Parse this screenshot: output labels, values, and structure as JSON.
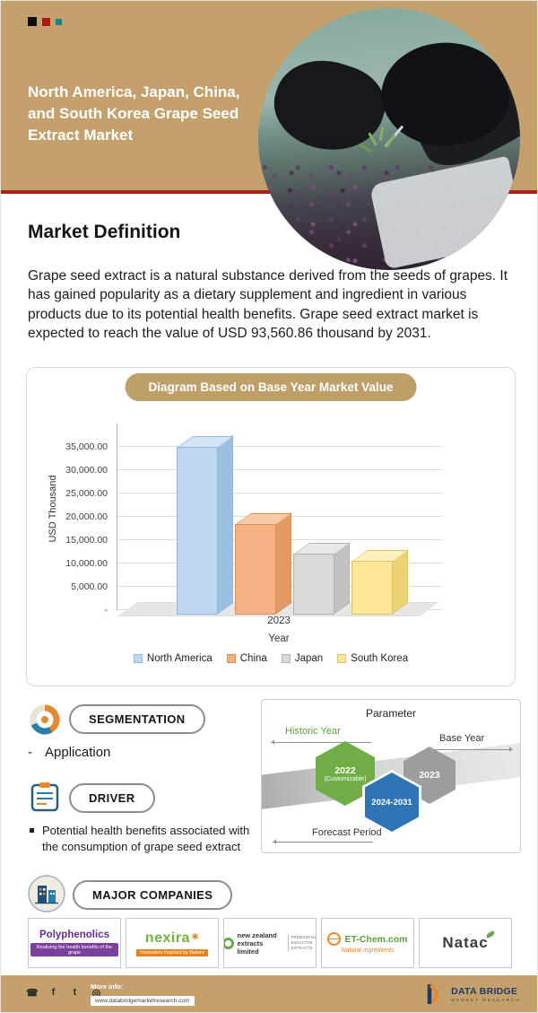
{
  "colors": {
    "header_tan": "#c3a06c",
    "divider_red": "#a8201a",
    "banner_tan": "#bf9f68",
    "hex_green": "#6fae46",
    "hex_gray": "#9d9d9d",
    "hex_blue": "#2f75b5"
  },
  "header": {
    "title": "North America, Japan, China, and South Korea Grape Seed Extract Market"
  },
  "definition": {
    "heading": "Market Definition",
    "body": "Grape seed extract is a natural substance derived from the seeds of grapes. It has gained popularity as a dietary supplement and ingredient in various products due to its potential health benefits. Grape seed extract market is expected to reach the value of USD 93,560.86 thousand by 2031."
  },
  "chart": {
    "banner": "Diagram Based on Base Year Market Value"
  },
  "chart_data": {
    "type": "bar",
    "title": "Diagram Based on Base Year Market Value",
    "categories": [
      "2023"
    ],
    "series": [
      {
        "name": "North America",
        "values": [
          36000
        ],
        "color": "#bdd7ee",
        "border": "#8fb8dc",
        "top": "#d3e5f5",
        "side": "#9cc0e2"
      },
      {
        "name": "China",
        "values": [
          19500
        ],
        "color": "#f4b183",
        "border": "#dd8f57",
        "top": "#f8c9a4",
        "side": "#e09a66"
      },
      {
        "name": "Japan",
        "values": [
          13000
        ],
        "color": "#d9d9d9",
        "border": "#b3b3b3",
        "top": "#e8e8e8",
        "side": "#c2c2c2"
      },
      {
        "name": "South Korea",
        "values": [
          11500
        ],
        "color": "#ffe699",
        "border": "#e0c35e",
        "top": "#fff0bf",
        "side": "#ecd272"
      }
    ],
    "xlabel": "Year",
    "ylabel": "USD Thousand",
    "ylim": [
      0,
      40000
    ],
    "ytick_step": 5000,
    "yticks": [
      "-",
      "5,000.00",
      "10,000.00",
      "15,000.00",
      "20,000.00",
      "25,000.00",
      "30,000.00",
      "35,000.00"
    ],
    "legend_position": "bottom",
    "grid": true
  },
  "segmentation": {
    "label": "SEGMENTATION",
    "marker": "-",
    "items": [
      "Application"
    ]
  },
  "driver": {
    "label": "DRIVER",
    "bullets": [
      "Potential health benefits associated with the consumption of grape seed extract"
    ]
  },
  "parameter": {
    "title": "Parameter",
    "historic_label": "Historic Year",
    "base_label": "Base Year",
    "forecast_label": "Forecast Period",
    "historic_hex": {
      "line1": "2022",
      "line2": "(Customizable)"
    },
    "base_hex": "2023",
    "forecast_hex": "2024-2031"
  },
  "major_companies": {
    "label": "MAJOR COMPANIES",
    "companies": [
      {
        "name": "Polyphenolics",
        "tagline": "Realizing the health benefits of the grape"
      },
      {
        "name": "nexira",
        "tagline": "Innovation Inspired by Nature",
        "star_glyph": "∗"
      },
      {
        "name": "new zealand extracts limited",
        "side_text": "PREMIUM NZ BIOACTIVE EXTRACTS"
      },
      {
        "name": "ET-Chem.com",
        "tagline": "Natural ingredients"
      },
      {
        "name": "Natac"
      }
    ]
  },
  "footer": {
    "more_info_label": "More info:",
    "website": "www.databridgemarketresearch.com",
    "brand_name": "DATA BRIDGE",
    "brand_sub": "MARKET RESEARCH",
    "social": [
      {
        "name": "whatsapp-icon",
        "glyph": "☎"
      },
      {
        "name": "facebook-icon",
        "glyph": "f"
      },
      {
        "name": "twitter-icon",
        "glyph": "t"
      },
      {
        "name": "instagram-icon",
        "glyph": "◎"
      }
    ]
  }
}
